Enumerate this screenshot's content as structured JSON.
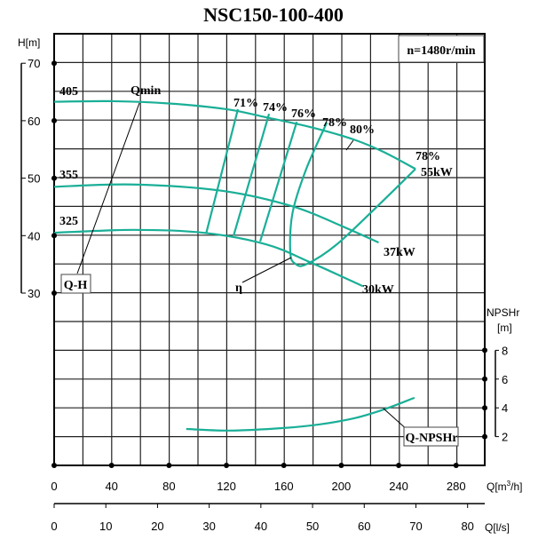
{
  "chart_data": {
    "type": "line",
    "title": "NSC150-100-400",
    "speed_label": "n=1480r/min",
    "x_axis": {
      "label": "Q[m³/h]",
      "label_main": "Q[m",
      "label_sup": "3",
      "label_tail": "/h]",
      "range": [
        0,
        300
      ],
      "ticks": [
        0,
        40,
        80,
        120,
        160,
        200,
        240,
        280
      ]
    },
    "x2_axis": {
      "label": "Q[l/s]",
      "range": [
        0,
        83.3
      ],
      "ticks": [
        0,
        10,
        20,
        30,
        40,
        50,
        60,
        70,
        80
      ]
    },
    "y_axis": {
      "label": "H[m]",
      "range": [
        30,
        70
      ],
      "ticks": [
        30,
        40,
        50,
        60,
        70
      ]
    },
    "y2_axis": {
      "label_line1": "NPSHr",
      "label_line2": "[m]",
      "range": [
        2,
        8
      ],
      "ticks": [
        2,
        4,
        6,
        8
      ]
    },
    "grid": true,
    "curve_color": "#1aaf97",
    "series": [
      {
        "name": "405",
        "type": "Q-H",
        "points": [
          [
            0,
            63.3
          ],
          [
            40,
            63.4
          ],
          [
            80,
            63.0
          ],
          [
            120,
            62.0
          ],
          [
            147.5,
            60.6
          ],
          [
            180,
            58.8
          ],
          [
            209,
            56.7
          ],
          [
            230,
            54.5
          ],
          [
            251.7,
            51.6
          ]
        ]
      },
      {
        "name": "355",
        "type": "Q-H",
        "points": [
          [
            0,
            48.5
          ],
          [
            55,
            48.9
          ],
          [
            117,
            47.8
          ],
          [
            166,
            45.1
          ],
          [
            200,
            41.7
          ],
          [
            226,
            38.8
          ]
        ]
      },
      {
        "name": "325",
        "type": "Q-H",
        "points": [
          [
            0,
            40.5
          ],
          [
            55,
            41.0
          ],
          [
            104,
            40.5
          ],
          [
            147.5,
            38.5
          ],
          [
            178,
            35.4
          ],
          [
            209,
            31.9
          ],
          [
            215,
            31.2
          ]
        ]
      }
    ],
    "efficiency_lines": [
      {
        "label": "71%",
        "points": [
          [
            128,
            62.0
          ],
          [
            106,
            40.5
          ]
        ]
      },
      {
        "label": "74%",
        "points": [
          [
            149.7,
            61.2
          ],
          [
            125,
            40.0
          ]
        ]
      },
      {
        "label": "76%",
        "points": [
          [
            169,
            59.8
          ],
          [
            143.5,
            39.0
          ]
        ]
      },
      {
        "label": "78%",
        "points": [
          [
            190,
            59.7
          ],
          [
            175.6,
            51.6
          ],
          [
            166,
            43.9
          ],
          [
            164.5,
            37.0
          ],
          [
            168,
            35.1
          ],
          [
            175.6,
            35.0
          ],
          [
            197,
            38.5
          ],
          [
            228,
            45.8
          ],
          [
            251.7,
            51.6
          ]
        ]
      }
    ],
    "npsh_curve": {
      "name": "Q-NPSHr",
      "points": [
        [
          92,
          2.53
        ],
        [
          123,
          2.42
        ],
        [
          160,
          2.6
        ],
        [
          185,
          2.85
        ],
        [
          210,
          3.3
        ],
        [
          230,
          3.9
        ],
        [
          251,
          4.7
        ]
      ]
    },
    "annotations": {
      "eff_80": "80%",
      "eff_78_end": "78%",
      "power_55": "55kW",
      "power_37": "37kW",
      "power_30": "30kW",
      "qmin": "Qmin",
      "qh": "Q-H",
      "eta": "η",
      "npsh_label": "Q-NPSHr"
    }
  }
}
